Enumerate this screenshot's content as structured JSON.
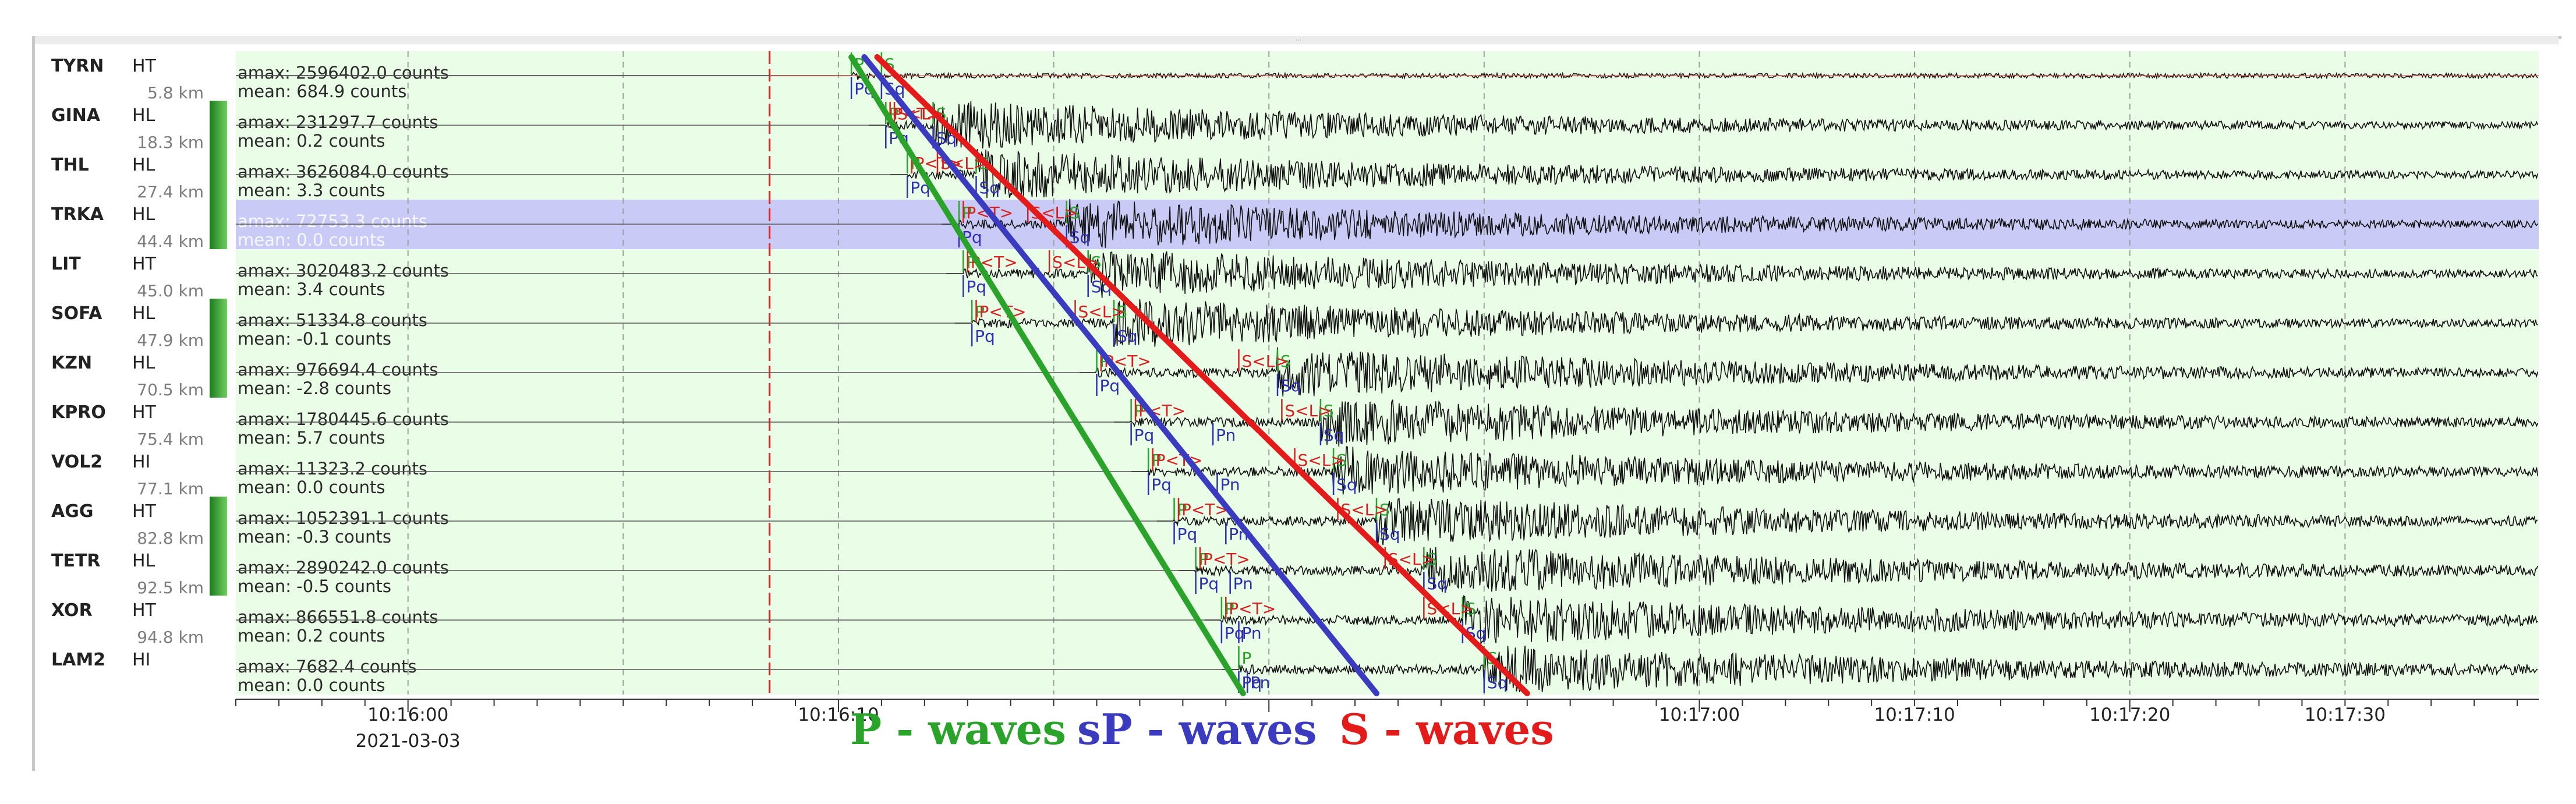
{
  "stations": [
    {
      "code": "TYRN",
      "channel": "HT",
      "distance": "5.8 km",
      "amax": "amax: 2596402.0 counts",
      "mean": "mean: 684.9 counts",
      "bar": false,
      "highlight": false
    },
    {
      "code": "GINA",
      "channel": "HL",
      "distance": "18.3 km",
      "amax": "amax: 231297.7 counts",
      "mean": "mean: 0.2 counts",
      "bar": true,
      "highlight": false
    },
    {
      "code": "THL",
      "channel": "HL",
      "distance": "27.4 km",
      "amax": "amax: 3626084.0 counts",
      "mean": "mean: 3.3 counts",
      "bar": true,
      "highlight": false
    },
    {
      "code": "TRKA",
      "channel": "HL",
      "distance": "44.4 km",
      "amax": "amax: 72753.3 counts",
      "mean": "mean: 0.0 counts",
      "bar": true,
      "highlight": true
    },
    {
      "code": "LIT",
      "channel": "HT",
      "distance": "45.0 km",
      "amax": "amax: 3020483.2 counts",
      "mean": "mean: 3.4 counts",
      "bar": false,
      "highlight": false
    },
    {
      "code": "SOFA",
      "channel": "HL",
      "distance": "47.9 km",
      "amax": "amax: 51334.8 counts",
      "mean": "mean: -0.1 counts",
      "bar": true,
      "highlight": false
    },
    {
      "code": "KZN",
      "channel": "HL",
      "distance": "70.5 km",
      "amax": "amax: 976694.4 counts",
      "mean": "mean: -2.8 counts",
      "bar": true,
      "highlight": false
    },
    {
      "code": "KPRO",
      "channel": "HT",
      "distance": "75.4 km",
      "amax": "amax: 1780445.6 counts",
      "mean": "mean: 5.7 counts",
      "bar": false,
      "highlight": false
    },
    {
      "code": "VOL2",
      "channel": "HI",
      "distance": "77.1 km",
      "amax": "amax: 11323.2 counts",
      "mean": "mean: 0.0 counts",
      "bar": false,
      "highlight": false
    },
    {
      "code": "AGG",
      "channel": "HT",
      "distance": "82.8 km",
      "amax": "amax: 1052391.1 counts",
      "mean": "mean: -0.3 counts",
      "bar": true,
      "highlight": false
    },
    {
      "code": "TETR",
      "channel": "HL",
      "distance": "92.5 km",
      "amax": "amax: 2890242.0 counts",
      "mean": "mean: -0.5 counts",
      "bar": true,
      "highlight": false
    },
    {
      "code": "XOR",
      "channel": "HT",
      "distance": "94.8 km",
      "amax": "amax: 866551.8 counts",
      "mean": "mean: 0.2 counts",
      "bar": false,
      "highlight": false
    },
    {
      "code": "LAM2",
      "channel": "HI",
      "distance": "",
      "amax": "amax: 7682.4 counts",
      "mean": "mean: 0.0 counts",
      "bar": false,
      "highlight": false
    }
  ],
  "time_axis": {
    "labels": [
      "10:16:00",
      "10:16:10",
      "10:17:00",
      "10:17:10",
      "10:17:20",
      "10:17:30"
    ],
    "date": "2021-03-03",
    "start_seconds": 46.0,
    "end_seconds": 99.5
  },
  "picks": {
    "origin_seconds": 58.4,
    "P": [
      60.3,
      61.1,
      61.6,
      62.8,
      62.9,
      63.1,
      66.0,
      66.8,
      67.2,
      67.8,
      68.3,
      68.9,
      69.3
    ],
    "Pq": [
      60.3,
      61.1,
      61.6,
      62.8,
      62.9,
      63.1,
      66.0,
      66.8,
      67.2,
      67.8,
      68.3,
      68.9,
      69.3
    ],
    "Pn": [
      null,
      null,
      null,
      null,
      null,
      null,
      null,
      68.7,
      68.8,
      69.0,
      69.1,
      69.3,
      69.5
    ],
    "S": [
      61.0,
      62.2,
      63.2,
      65.3,
      65.8,
      66.4,
      70.2,
      71.2,
      71.5,
      72.5,
      73.6,
      74.5,
      75.0
    ],
    "Sq": [
      61.0,
      62.2,
      63.2,
      65.3,
      65.8,
      66.4,
      70.2,
      71.2,
      71.5,
      72.5,
      73.6,
      74.5,
      75.0
    ],
    "P_label": "P",
    "S_label": "S",
    "Pq_label": "Pq",
    "Pn_label": "Pn",
    "Sq_label": "Sq",
    "PT_label": "P<T>",
    "SL_label": "S<L>"
  },
  "legend": {
    "p_waves": "P - waves",
    "sp_waves": "sP - waves",
    "s_waves": "S - waves"
  },
  "colors": {
    "row_bg": "#eafde6",
    "highlight_bg": "#c9cbf6",
    "bar_green": "#2f8f2f",
    "p_line": "#2aa32a",
    "sp_line": "#3b3bc0",
    "s_line": "#e31b1b",
    "pick_red": "#d92020",
    "pick_green": "#2aa32a",
    "pick_blue": "#2f2fb0",
    "grid_dash": "#9ea29e"
  }
}
